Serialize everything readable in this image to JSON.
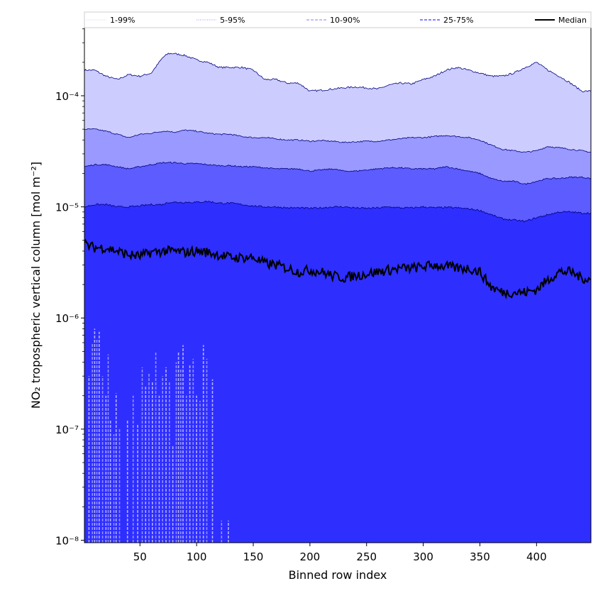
{
  "chart_data": {
    "type": "area",
    "title": "",
    "xlabel": "Binned row index",
    "ylabel": "NO₂ tropospheric vertical column [mol m⁻²]",
    "yscale": "log",
    "xlim": [
      1,
      448
    ],
    "ylim": [
      9.5e-09,
      0.00041
    ],
    "grid": false,
    "legend_placement": "top",
    "x_ticks": [
      50,
      100,
      150,
      200,
      250,
      300,
      350,
      400
    ],
    "x_tick_labels": [
      "50",
      "100",
      "150",
      "200",
      "250",
      "300",
      "350",
      "400"
    ],
    "y_ticks": [
      1e-08,
      1e-07,
      1e-06,
      1e-05,
      0.0001
    ],
    "y_tick_labels": [
      "10⁻⁸",
      "10⁻⁷",
      "10⁻⁶",
      "10⁻⁵",
      "10⁻⁴"
    ],
    "colors": {
      "band_1_99": "#ccccff",
      "band_5_95": "#9999ff",
      "band_10_90": "#5c5cff",
      "band_25_75": "#2e2eff",
      "bottom_band": "#2a2aff",
      "median": "#000000",
      "edge": "#000080"
    },
    "x": [
      1,
      10,
      20,
      30,
      40,
      50,
      60,
      70,
      75,
      80,
      90,
      100,
      110,
      120,
      130,
      140,
      150,
      160,
      170,
      180,
      190,
      200,
      210,
      220,
      230,
      240,
      250,
      260,
      270,
      280,
      290,
      300,
      310,
      320,
      330,
      340,
      350,
      360,
      370,
      380,
      390,
      400,
      410,
      420,
      430,
      440,
      448
    ],
    "series": [
      {
        "name": "1-99%",
        "role": "p99",
        "values": [
          0.00017,
          0.00017,
          0.00015,
          0.00014,
          0.000155,
          0.00015,
          0.00016,
          0.00022,
          0.00024,
          0.00024,
          0.00023,
          0.00021,
          0.0002,
          0.00018,
          0.00018,
          0.00018,
          0.00017,
          0.00014,
          0.00014,
          0.00013,
          0.00013,
          0.00011,
          0.000112,
          0.000115,
          0.000118,
          0.00012,
          0.000118,
          0.000115,
          0.000125,
          0.00013,
          0.000128,
          0.00014,
          0.00015,
          0.00017,
          0.00018,
          0.00017,
          0.00016,
          0.00015,
          0.00015,
          0.00016,
          0.00018,
          0.0002,
          0.00017,
          0.00015,
          0.00013,
          0.00011,
          0.00011
        ]
      },
      {
        "name": "5-95%",
        "role": "p95",
        "values": [
          5e-05,
          5e-05,
          4.8e-05,
          4.5e-05,
          4.2e-05,
          4.5e-05,
          4.6e-05,
          4.8e-05,
          4.8e-05,
          4.7e-05,
          4.9e-05,
          4.8e-05,
          4.6e-05,
          4.5e-05,
          4.5e-05,
          4.3e-05,
          4.2e-05,
          4.2e-05,
          4.1e-05,
          4e-05,
          4e-05,
          3.9e-05,
          3.95e-05,
          3.9e-05,
          3.8e-05,
          3.85e-05,
          3.9e-05,
          3.9e-05,
          4e-05,
          4.1e-05,
          4.2e-05,
          4.2e-05,
          4.3e-05,
          4.4e-05,
          4.3e-05,
          4.2e-05,
          4e-05,
          3.6e-05,
          3.3e-05,
          3.2e-05,
          3.1e-05,
          3.2e-05,
          3.5e-05,
          3.4e-05,
          3.3e-05,
          3.2e-05,
          3.1e-05
        ]
      },
      {
        "name": "10-90%",
        "role": "p90",
        "values": [
          2.3e-05,
          2.4e-05,
          2.4e-05,
          2.3e-05,
          2.2e-05,
          2.3e-05,
          2.4e-05,
          2.5e-05,
          2.5e-05,
          2.5e-05,
          2.45e-05,
          2.45e-05,
          2.4e-05,
          2.35e-05,
          2.35e-05,
          2.3e-05,
          2.3e-05,
          2.25e-05,
          2.2e-05,
          2.2e-05,
          2.2e-05,
          2.1e-05,
          2.15e-05,
          2.2e-05,
          2.1e-05,
          2.1e-05,
          2.15e-05,
          2.2e-05,
          2.25e-05,
          2.25e-05,
          2.2e-05,
          2.2e-05,
          2.2e-05,
          2.3e-05,
          2.2e-05,
          2.1e-05,
          2e-05,
          1.8e-05,
          1.7e-05,
          1.7e-05,
          1.6e-05,
          1.7e-05,
          1.8e-05,
          1.8e-05,
          1.85e-05,
          1.85e-05,
          1.8e-05
        ]
      },
      {
        "name": "25-75%",
        "role": "p75",
        "values": [
          1e-05,
          1.05e-05,
          1.05e-05,
          1e-05,
          1e-05,
          1.02e-05,
          1.05e-05,
          1.05e-05,
          1.1e-05,
          1.1e-05,
          1.1e-05,
          1.1e-05,
          1.12e-05,
          1.08e-05,
          1.08e-05,
          1.05e-05,
          1.02e-05,
          1e-05,
          1e-05,
          9.8e-06,
          9.8e-06,
          9.7e-06,
          9.8e-06,
          1e-05,
          1e-05,
          9.8e-06,
          9.7e-06,
          9.8e-06,
          1e-05,
          9.8e-06,
          9.8e-06,
          1e-05,
          9.8e-06,
          9.9e-06,
          9.8e-06,
          9.6e-06,
          9.3e-06,
          8.5e-06,
          7.8e-06,
          7.6e-06,
          7.4e-06,
          8e-06,
          8.5e-06,
          9e-06,
          9e-06,
          8.8e-06,
          8.8e-06
        ]
      },
      {
        "name": "Median",
        "role": "median",
        "values": [
          4.6e-06,
          4.3e-06,
          4.3e-06,
          4e-06,
          3.7e-06,
          3.6e-06,
          3.9e-06,
          4e-06,
          4e-06,
          4e-06,
          3.9e-06,
          4e-06,
          3.9e-06,
          3.7e-06,
          3.5e-06,
          3.5e-06,
          3.5e-06,
          3.1e-06,
          3e-06,
          2.8e-06,
          2.6e-06,
          2.7e-06,
          2.6e-06,
          2.4e-06,
          2.3e-06,
          2.4e-06,
          2.5e-06,
          2.6e-06,
          2.7e-06,
          2.8e-06,
          2.8e-06,
          2.9e-06,
          3e-06,
          2.9e-06,
          2.8e-06,
          2.8e-06,
          2.6e-06,
          1.9e-06,
          1.7e-06,
          1.7e-06,
          1.7e-06,
          1.8e-06,
          2.2e-06,
          2.6e-06,
          2.6e-06,
          2.3e-06,
          2.2e-06
        ]
      }
    ],
    "low_percentile_spikes": [
      {
        "x": 5,
        "y": 3e-07
      },
      {
        "x": 8,
        "y": 6e-07
      },
      {
        "x": 10,
        "y": 8e-07
      },
      {
        "x": 12,
        "y": 6.5e-07
      },
      {
        "x": 14,
        "y": 7.5e-07
      },
      {
        "x": 17,
        "y": 3e-07
      },
      {
        "x": 20,
        "y": 2e-07
      },
      {
        "x": 22,
        "y": 4.7e-07
      },
      {
        "x": 24,
        "y": 1.2e-07
      },
      {
        "x": 27,
        "y": 9e-08
      },
      {
        "x": 29,
        "y": 2.1e-07
      },
      {
        "x": 32,
        "y": 1e-07
      },
      {
        "x": 39,
        "y": 1.2e-07
      },
      {
        "x": 44,
        "y": 2e-07
      },
      {
        "x": 48,
        "y": 1.1e-07
      },
      {
        "x": 52,
        "y": 3.6e-07
      },
      {
        "x": 55,
        "y": 2.4e-07
      },
      {
        "x": 58,
        "y": 3.2e-07
      },
      {
        "x": 61,
        "y": 2.7e-07
      },
      {
        "x": 64,
        "y": 5e-07
      },
      {
        "x": 67,
        "y": 2e-07
      },
      {
        "x": 70,
        "y": 3e-07
      },
      {
        "x": 73,
        "y": 3.6e-07
      },
      {
        "x": 76,
        "y": 2.7e-07
      },
      {
        "x": 79,
        "y": 7e-08
      },
      {
        "x": 82,
        "y": 4e-07
      },
      {
        "x": 84,
        "y": 5e-07
      },
      {
        "x": 86,
        "y": 3.5e-07
      },
      {
        "x": 88,
        "y": 5.7e-07
      },
      {
        "x": 91,
        "y": 2e-07
      },
      {
        "x": 94,
        "y": 3.8e-07
      },
      {
        "x": 97,
        "y": 4.3e-07
      },
      {
        "x": 100,
        "y": 2e-07
      },
      {
        "x": 103,
        "y": 1.8e-07
      },
      {
        "x": 106,
        "y": 5.7e-07
      },
      {
        "x": 109,
        "y": 4.3e-07
      },
      {
        "x": 114,
        "y": 2.8e-07
      },
      {
        "x": 122,
        "y": 1.5e-08
      },
      {
        "x": 128,
        "y": 1.5e-08
      }
    ],
    "legend": [
      {
        "label": "1-99%",
        "style": "dotted"
      },
      {
        "label": "5-95%",
        "style": "dotted"
      },
      {
        "label": "10-90%",
        "style": "dashed"
      },
      {
        "label": "25-75%",
        "style": "dashed"
      },
      {
        "label": "Median",
        "style": "solid"
      }
    ]
  }
}
